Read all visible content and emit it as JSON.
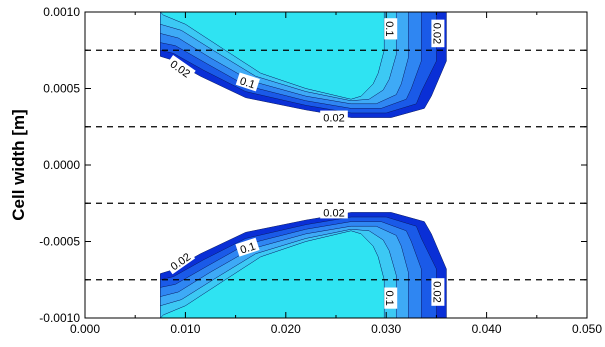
{
  "chart_data": {
    "type": "contour",
    "title": "",
    "xlabel": "",
    "ylabel": "Cell width [m]",
    "xlim": [
      0.0,
      0.05
    ],
    "ylim": [
      -0.001,
      0.001
    ],
    "x_ticks": [
      "0.000",
      "0.010",
      "0.020",
      "0.030",
      "0.040",
      "0.050"
    ],
    "x_tick_values": [
      0.0,
      0.01,
      0.02,
      0.03,
      0.04,
      0.05
    ],
    "y_ticks": [
      "0.0010",
      "0.0005",
      "0.0000",
      "-0.0005",
      "-0.0010"
    ],
    "y_tick_values": [
      0.001,
      0.0005,
      0.0,
      -0.0005,
      -0.001
    ],
    "contour_labels": [
      "0.02",
      "0.1",
      "0.02",
      "0.1",
      "0.02",
      "0.02",
      "0.1",
      "0.02",
      "0.1",
      "0.02"
    ],
    "dashed_lines_y": [
      0.00075,
      0.00025,
      -0.00025,
      -0.00075
    ],
    "level_colors": [
      "#0a2fd6",
      "#1a5ae8",
      "#2f86f2",
      "#3eaaf6",
      "#3cc9f4",
      "#2fe3f2"
    ],
    "levels": [
      {
        "value": 0.02,
        "color": "#0a2fd6",
        "outline": [
          [
            0.0075,
            0.001
          ],
          [
            0.036,
            0.001
          ],
          [
            0.036,
            0.00068
          ],
          [
            0.0345,
            0.00045
          ],
          [
            0.0338,
            0.00037
          ],
          [
            0.0305,
            0.00031
          ],
          [
            0.0265,
            0.00031
          ],
          [
            0.022,
            0.00036
          ],
          [
            0.016,
            0.00044
          ],
          [
            0.0115,
            0.00058
          ],
          [
            0.0085,
            0.00069
          ],
          [
            0.0075,
            0.00071
          ]
        ]
      },
      {
        "value": 0.04,
        "color": "#1a5ae8",
        "outline": [
          [
            0.0075,
            0.001
          ],
          [
            0.035,
            0.001
          ],
          [
            0.035,
            0.00068
          ],
          [
            0.0335,
            0.00048
          ],
          [
            0.033,
            0.0004
          ],
          [
            0.03,
            0.00034
          ],
          [
            0.0265,
            0.00034
          ],
          [
            0.022,
            0.00039
          ],
          [
            0.016,
            0.00048
          ],
          [
            0.0118,
            0.00062
          ],
          [
            0.0088,
            0.00073
          ],
          [
            0.0075,
            0.00075
          ]
        ]
      },
      {
        "value": 0.06,
        "color": "#2f86f2",
        "outline": [
          [
            0.0075,
            0.001
          ],
          [
            0.0335,
            0.001
          ],
          [
            0.0335,
            0.00068
          ],
          [
            0.0325,
            0.0005
          ],
          [
            0.032,
            0.00043
          ],
          [
            0.0295,
            0.00037
          ],
          [
            0.0265,
            0.00037
          ],
          [
            0.022,
            0.00042
          ],
          [
            0.016,
            0.00052
          ],
          [
            0.0122,
            0.00066
          ],
          [
            0.009,
            0.00078
          ],
          [
            0.0075,
            0.0008
          ]
        ]
      },
      {
        "value": 0.08,
        "color": "#3eaaf6",
        "outline": [
          [
            0.0075,
            0.001
          ],
          [
            0.0322,
            0.001
          ],
          [
            0.0322,
            0.0007
          ],
          [
            0.0315,
            0.00053
          ],
          [
            0.031,
            0.00046
          ],
          [
            0.029,
            0.0004
          ],
          [
            0.0265,
            0.0004
          ],
          [
            0.022,
            0.00045
          ],
          [
            0.0165,
            0.00055
          ],
          [
            0.0125,
            0.0007
          ],
          [
            0.0093,
            0.00083
          ],
          [
            0.0075,
            0.00086
          ]
        ]
      },
      {
        "value": 0.1,
        "color": "#3cc9f4",
        "outline": [
          [
            0.0075,
            0.001
          ],
          [
            0.031,
            0.001
          ],
          [
            0.031,
            0.00072
          ],
          [
            0.0303,
            0.00056
          ],
          [
            0.0297,
            0.00049
          ],
          [
            0.0283,
            0.00043
          ],
          [
            0.0265,
            0.00042
          ],
          [
            0.022,
            0.00048
          ],
          [
            0.017,
            0.00058
          ],
          [
            0.013,
            0.00074
          ],
          [
            0.0096,
            0.00088
          ],
          [
            0.0075,
            0.00092
          ]
        ]
      },
      {
        "value": 0.12,
        "color": "#2fe3f2",
        "outline": [
          [
            0.0075,
            0.001
          ],
          [
            0.0298,
            0.001
          ],
          [
            0.0298,
            0.00075
          ],
          [
            0.0292,
            0.0006
          ],
          [
            0.0287,
            0.00053
          ],
          [
            0.0275,
            0.00045
          ],
          [
            0.0265,
            0.00043
          ],
          [
            0.022,
            0.0005
          ],
          [
            0.0175,
            0.0006
          ],
          [
            0.0135,
            0.00077
          ],
          [
            0.01,
            0.00092
          ],
          [
            0.0078,
            0.00098
          ]
        ]
      }
    ]
  }
}
